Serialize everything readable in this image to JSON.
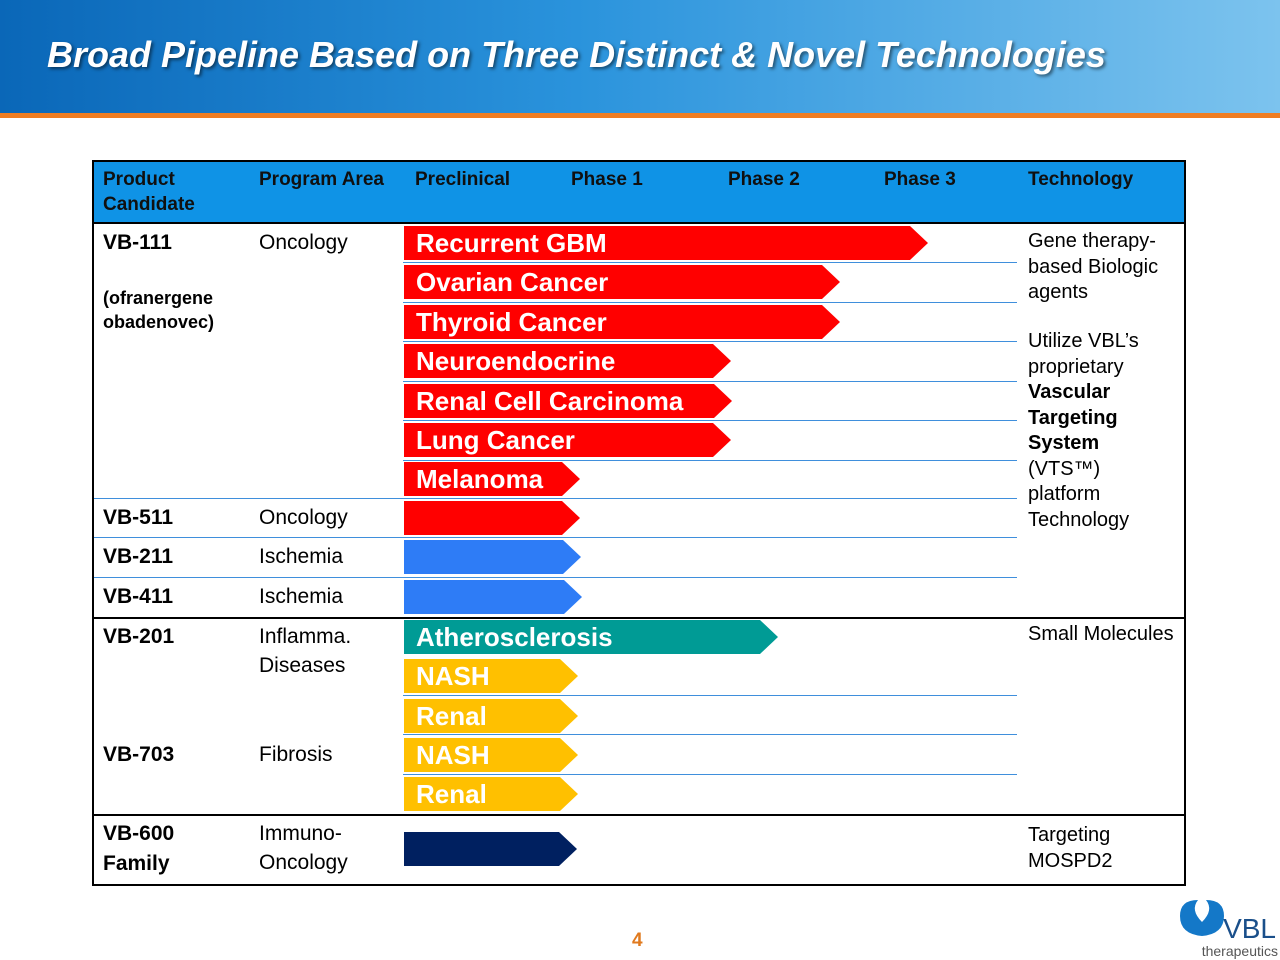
{
  "header": {
    "title": "Broad Pipeline Based on Three Distinct & Novel Technologies"
  },
  "table": {
    "columns": [
      "Product Candidate",
      "Program Area",
      "Preclinical",
      "Phase 1",
      "Phase 2",
      "Phase 3",
      "Technology"
    ],
    "products": [
      {
        "name": "VB-111",
        "note": "(ofranergene obadenovec)",
        "area": "Oncology",
        "indications": [
          "Recurrent GBM",
          "Ovarian Cancer",
          "Thyroid Cancer",
          "Neuroendocrine",
          "Renal Cell Carcinoma",
          "Lung Cancer",
          "Melanoma"
        ]
      },
      {
        "name": "VB-511",
        "area": "Oncology"
      },
      {
        "name": "VB-211",
        "area": "Ischemia"
      },
      {
        "name": "VB-411",
        "area": "Ischemia"
      },
      {
        "name": "VB-201",
        "area": "Inflamma. Diseases",
        "indications": [
          "Atherosclerosis",
          "NASH",
          "Renal"
        ]
      },
      {
        "name": "VB-703",
        "area": "Fibrosis",
        "indications": [
          "NASH",
          "Renal"
        ]
      },
      {
        "name": "VB-600 Family",
        "area": "Immuno-Oncology"
      }
    ],
    "technology": [
      [
        "Gene therapy-based Biologic agents"
      ],
      [
        "Utilize VBL’s proprietary",
        "Vascular Targeting System",
        "(VTS™) platform Technology"
      ],
      [
        "Small Molecules"
      ],
      [
        "Targeting MOSPD2"
      ]
    ]
  },
  "footer": {
    "page": "4",
    "logo": "VBL",
    "logo_subtitle": "therapeutics"
  }
}
